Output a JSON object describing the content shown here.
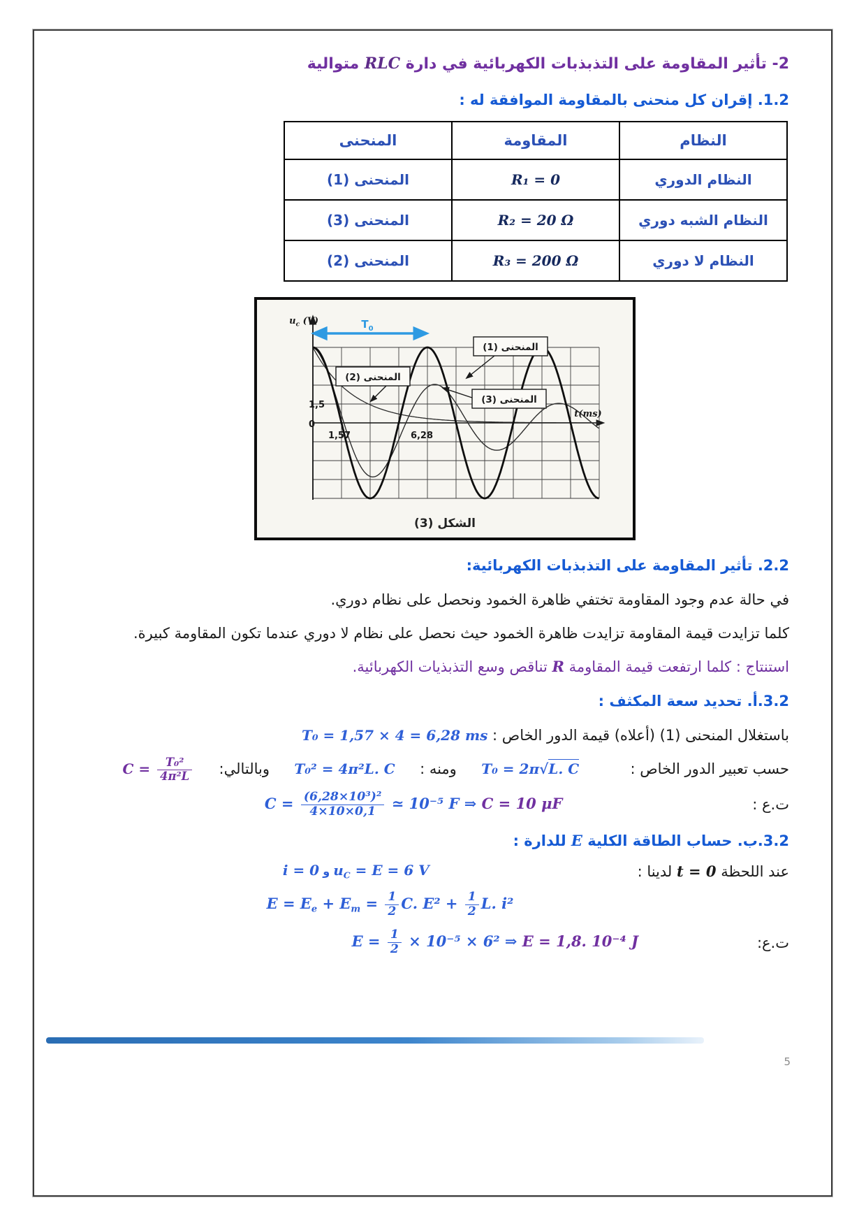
{
  "title": {
    "pre": "2- تأثير المقاومة على التذبذبات الكهربائية في دارة ",
    "rlc": "RLC",
    "post": " متوالية"
  },
  "sec12_heading": "1.2. إقران كل منحنى بالمقاومة الموافقة له :",
  "table": {
    "headers": {
      "system": "النظام",
      "resistance": "المقاومة",
      "curve": "المنحنى"
    },
    "rows": [
      {
        "system": "النظام الدوري",
        "resistance": "R₁ = 0",
        "curve": "المنحنى (1)"
      },
      {
        "system": "النظام الشبه دوري",
        "resistance": "R₂ = 20 Ω",
        "curve": "المنحنى (3)"
      },
      {
        "system": "النظام لا دوري",
        "resistance": "R₃ = 200 Ω",
        "curve": "المنحنى (2)"
      }
    ]
  },
  "figure": {
    "caption": "الشكل (3)",
    "ylabel_base": "u",
    "ylabel_sub": "c",
    "ylabel_unit": " (V)",
    "xlabel": "t(ms)",
    "t0_label": "T0",
    "tick_15": "1,5",
    "tick_0": "0",
    "tick_157": "1,57",
    "tick_628": "6,28",
    "box1": "المنحنى (1)",
    "box2": "المنحنى (2)",
    "box3": "المنحنى (3)"
  },
  "chart_data": {
    "type": "line",
    "title": "الشكل (3)",
    "xlabel": "t(ms)",
    "ylabel": "u_c (V)",
    "grid": true,
    "x_range_ms": [
      0,
      15.7
    ],
    "y_range_V": [
      -6,
      6
    ],
    "grid_step": {
      "x_ms": 1.57,
      "y_V": 1.5
    },
    "x_ticks": [
      {
        "t": 1.57,
        "label": "1,57"
      },
      {
        "t": 6.28,
        "label": "6,28"
      }
    ],
    "y_ticks": [
      {
        "v": 1.5,
        "label": "1,5"
      },
      {
        "v": 0,
        "label": "0"
      }
    ],
    "annotations": [
      {
        "label": "T0",
        "meaning": "الدور الخاص",
        "value_ms": 6.28
      }
    ],
    "series": [
      {
        "name": "المنحنى (1)",
        "regime": "النظام الدوري",
        "model": "undamped_cosine",
        "amplitude_V": 6,
        "period_ms": 6.28
      },
      {
        "name": "المنحنى (2)",
        "regime": "النظام لا دوري",
        "model": "aperiodic_decay",
        "initial_V": 6,
        "decay_ms": 2.2
      },
      {
        "name": "المنحنى (3)",
        "regime": "النظام الشبه دوري",
        "model": "damped_cosine",
        "amplitude_V": 6,
        "pseudo_period_ms": 6.8,
        "damping_per_ms": 0.1
      }
    ]
  },
  "sec22": {
    "heading": "2.2. تأثير المقاومة على التذبذبات الكهربائية:",
    "p1": "في حالة عدم وجود المقاومة تختفي ظاهرة الخمود ونحصل على نظام دوري.",
    "p2": "كلما تزايدت قيمة المقاومة تزايدت ظاهرة الخمود حيث نحصل على نظام لا دوري عندما تكون المقاومة كبيرة.",
    "conclusion_pre": "استنتاج : كلما ارتفعت قيمة المقاومة ",
    "conclusion_R": "R",
    "conclusion_post": " تناقص وسع التذبذيات الكهربائية."
  },
  "sec32a": {
    "heading": "3.2.أ. تحديد سعة المكثف :",
    "line1_label": "باستغلال المنحنى (1) (أعلاه) قيمة الدور الخاص : ",
    "line1_formula": "T₀ = 1,57 × 4 = 6,28 ms",
    "line2_label": "حسب تعبير الدور الخاص :",
    "f1_pre": "T₀ = 2π",
    "f1_sqrt": "√",
    "f1_arg": "L. C",
    "mid1": "ومنه : ",
    "f2": "T₀² = 4π²L. C",
    "mid2": "وبالتالي:",
    "f3_lhs": "C =",
    "f3_num": "T₀²",
    "f3_den": "4π²L",
    "ta_label": "ت.ع :",
    "calc_lhs": "C =",
    "calc_num": "(6,28×10³)²",
    "calc_den": "4×10×0,1",
    "calc_mid": "≃ 10⁻⁵ F ⇒",
    "calc_result": "C = 10 μF"
  },
  "sec32b": {
    "heading_pre": "3.2.ب. حساب الطاقة الكلية ",
    "heading_E": "E",
    "heading_post": " للدارة :",
    "cond_pre": "عند اللحظة ",
    "cond_t": "t = 0",
    "cond_post": " لدينا :",
    "cond_uc_base": "u",
    "cond_uc_sub": "C",
    "cond_uc_rest": " = E = 6 V",
    "cond_and": "و",
    "cond_i": "i = 0",
    "ef_1": "E = E",
    "ef_sub_e": "e",
    "ef_2": " + E",
    "ef_sub_m": "m",
    "ef_3": " = ",
    "half_num": "1",
    "half_den": "2",
    "ef_4": "C. E²",
    "ef_5": " + ",
    "ef_6": "L. i²",
    "ta_label": "ت.ع:",
    "calc_lhs": "E =",
    "calc_mid": "× 10⁻⁵ × 6²  ⇒",
    "calc_result": "E = 1,8. 10⁻⁴ J"
  },
  "footer": {
    "page_number": "5"
  }
}
